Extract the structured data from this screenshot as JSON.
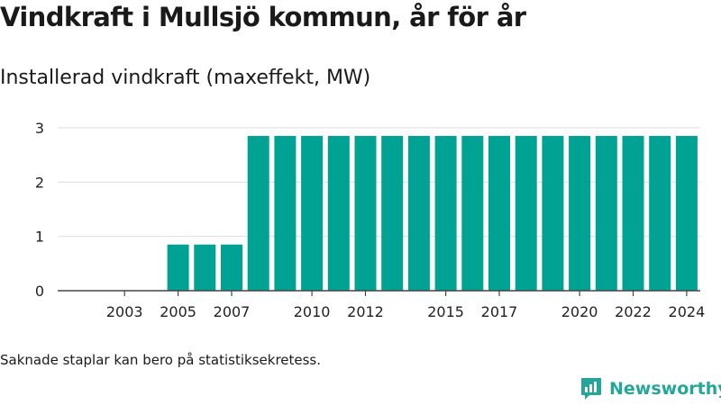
{
  "title": "Vindkraft i Mullsjö kommun, år för år",
  "subtitle": "Installerad vindkraft (maxeffekt, MW)",
  "note": "Saknade staplar kan bero på statistiksekretess.",
  "brand": {
    "name": "Newsworthy",
    "icon": "newsworthy-logo-icon",
    "color": "#26a69a"
  },
  "colors": {
    "bar": "#00a294",
    "grid": "#dddddd",
    "axis": "#444444"
  },
  "chart_data": {
    "type": "bar",
    "title": "Installerad vindkraft (maxeffekt, MW)",
    "xlabel": "",
    "ylabel": "",
    "ylim": [
      0,
      3
    ],
    "yticks": [
      "0",
      "1",
      "2",
      "3"
    ],
    "grid": true,
    "categories": [
      "2002",
      "2003",
      "2004",
      "2005",
      "2006",
      "2007",
      "2008",
      "2009",
      "2010",
      "2011",
      "2012",
      "2013",
      "2014",
      "2015",
      "2016",
      "2017",
      "2018",
      "2019",
      "2020",
      "2021",
      "2022",
      "2023",
      "2024"
    ],
    "xtick_labels": [
      "2003",
      "2005",
      "2007",
      "2010",
      "2012",
      "2015",
      "2017",
      "2020",
      "2022",
      "2024"
    ],
    "values": [
      0,
      0,
      0,
      0.85,
      0.85,
      0.85,
      2.85,
      2.85,
      2.85,
      2.85,
      2.85,
      2.85,
      2.85,
      2.85,
      2.85,
      2.85,
      2.85,
      2.85,
      2.85,
      2.85,
      2.85,
      2.85,
      2.85
    ]
  }
}
